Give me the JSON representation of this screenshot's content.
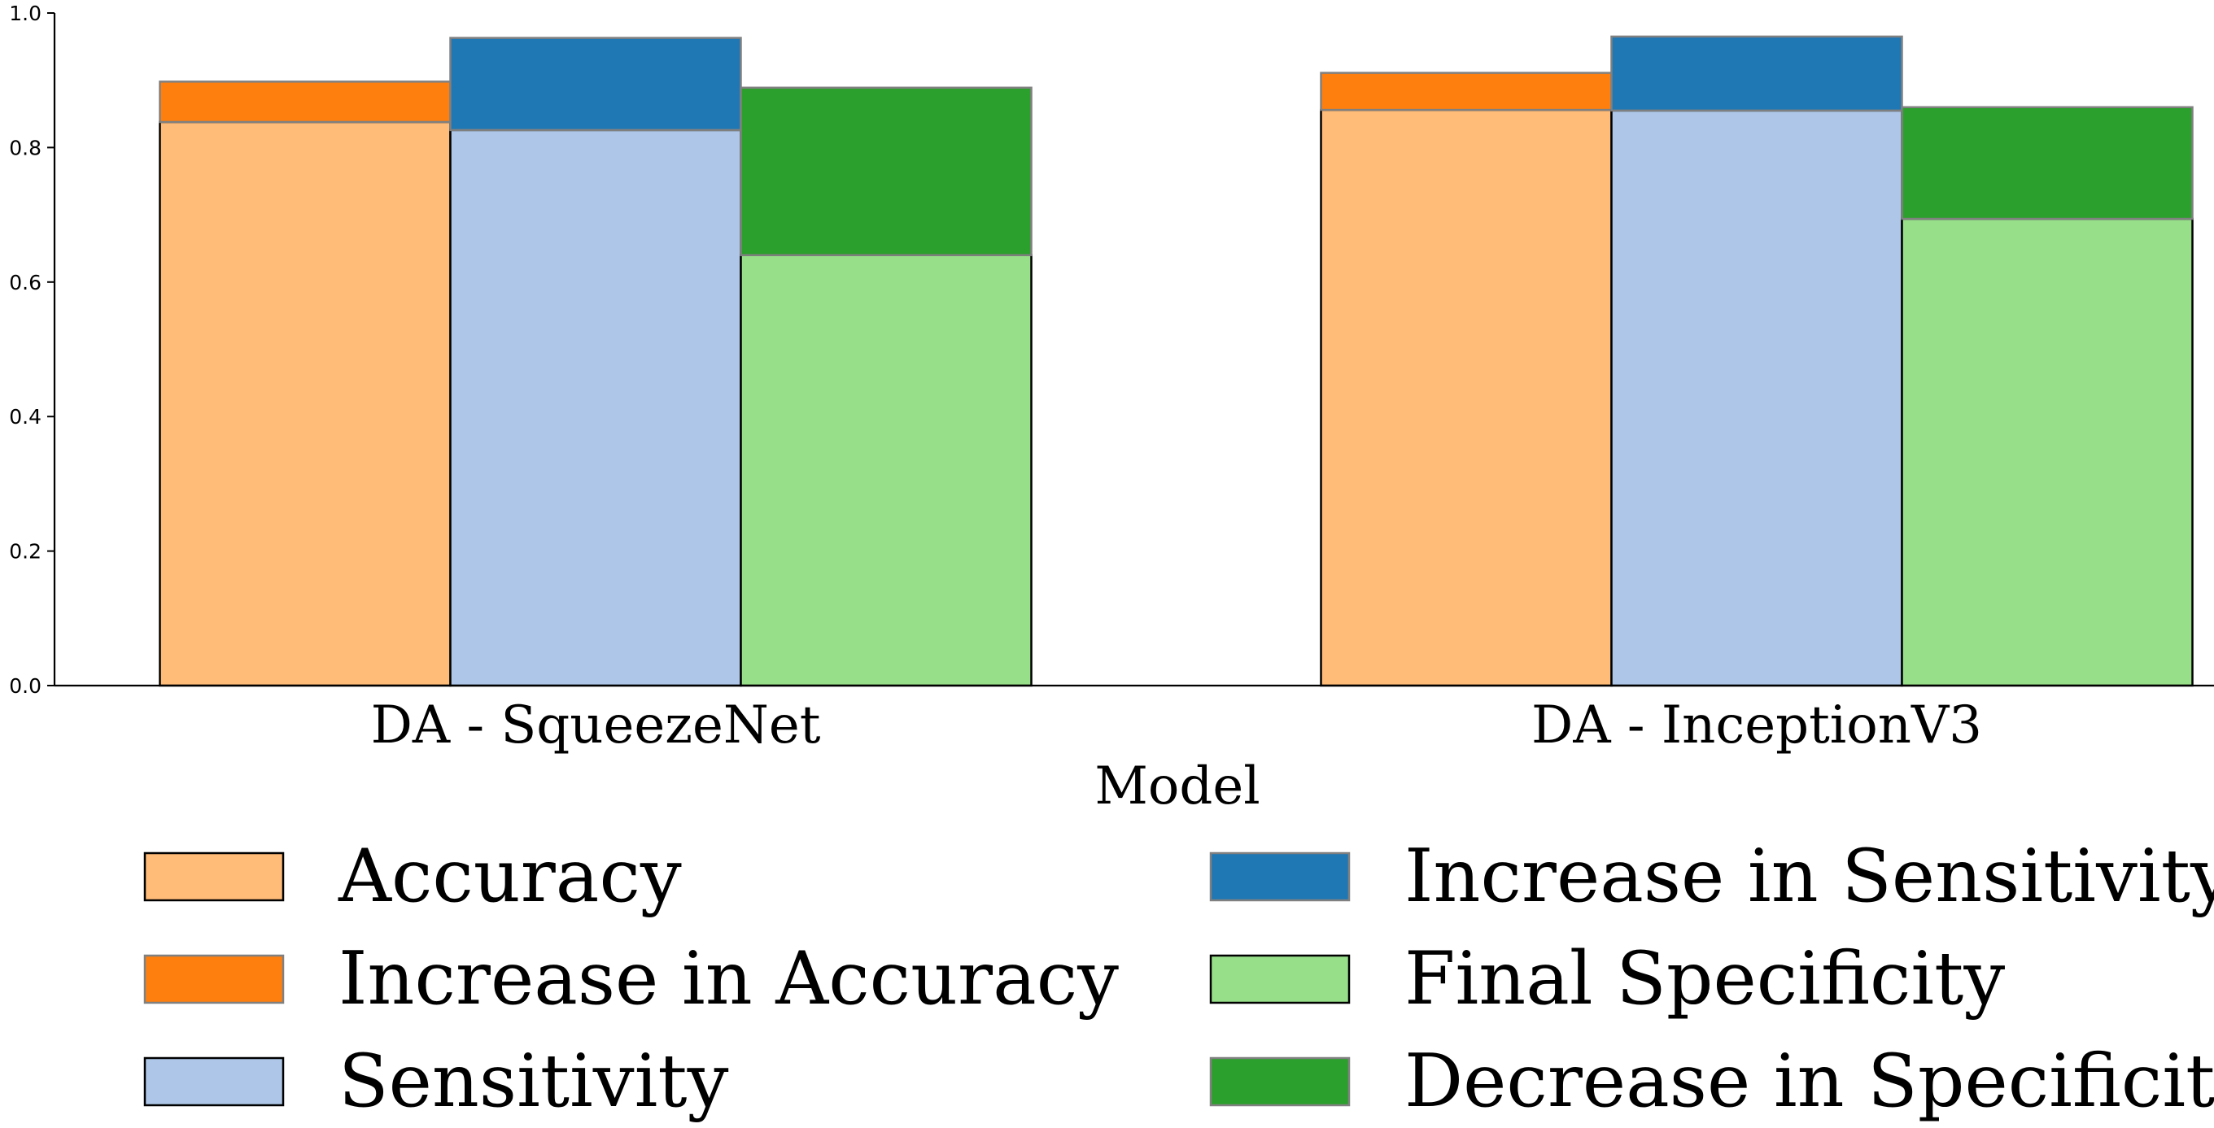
{
  "chart_data": {
    "type": "bar",
    "stacked": true,
    "categories": [
      "DA - SqueezeNet",
      "DA - InceptionV3"
    ],
    "xlabel": "Model",
    "ylabel": "",
    "ylim": [
      0,
      1.0
    ],
    "yticks": [
      "0.0",
      "0.2",
      "0.4",
      "0.6",
      "0.8",
      "1.0"
    ],
    "grid": false,
    "legend_placement": "bottom",
    "groups": [
      {
        "name": "accuracy",
        "base": {
          "name": "Accuracy",
          "color": "#ffbb78",
          "values": [
            0.838,
            0.856
          ]
        },
        "top": {
          "name": "Increase in Accuracy",
          "color": "#ff7f0e",
          "values": [
            0.06,
            0.055
          ]
        }
      },
      {
        "name": "sensitivity",
        "base": {
          "name": "Sensitivity",
          "color": "#aec7e8",
          "values": [
            0.826,
            0.855
          ]
        },
        "top": {
          "name": "Increase in Sensitivity",
          "color": "#1f77b4",
          "values": [
            0.137,
            0.11
          ]
        }
      },
      {
        "name": "specificity",
        "base": {
          "name": "Final Specificity",
          "color": "#98df8a",
          "values": [
            0.64,
            0.694
          ]
        },
        "top": {
          "name": "Decrease in Specificity",
          "color": "#2ca02c",
          "values": [
            0.249,
            0.166
          ]
        }
      }
    ],
    "legend": [
      {
        "label": "Accuracy",
        "color": "#ffbb78",
        "edge": "#000000"
      },
      {
        "label": "Increase in Sensitivity",
        "color": "#1f77b4",
        "edge": "#808080"
      },
      {
        "label": "Increase in Accuracy",
        "color": "#ff7f0e",
        "edge": "#808080"
      },
      {
        "label": "Final Specificity",
        "color": "#98df8a",
        "edge": "#000000"
      },
      {
        "label": "Sensitivity",
        "color": "#aec7e8",
        "edge": "#000000"
      },
      {
        "label": "Decrease in Specificity",
        "color": "#2ca02c",
        "edge": "#808080"
      }
    ]
  }
}
